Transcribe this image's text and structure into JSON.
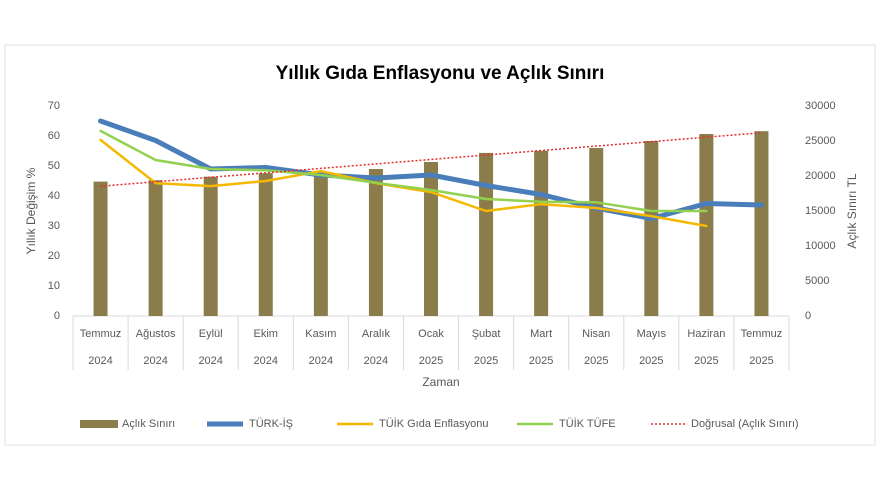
{
  "chart_data": {
    "type": "combo",
    "title": "Yıllık Gıda Enflasyonu ve Açlık Sınırı",
    "x_label": "Zaman",
    "y_label": "Yıllık Değişim %",
    "y2_label": "Açlık Sınırı TL",
    "categories": [
      [
        "Temmuz",
        "2024"
      ],
      [
        "Ağustos",
        "2024"
      ],
      [
        "Eylül",
        "2024"
      ],
      [
        "Ekim",
        "2024"
      ],
      [
        "Kasım",
        "2024"
      ],
      [
        "Aralık",
        "2024"
      ],
      [
        "Ocak",
        "2025"
      ],
      [
        "Şubat",
        "2025"
      ],
      [
        "Mart",
        "2025"
      ],
      [
        "Nisan",
        "2025"
      ],
      [
        "Mayıs",
        "2025"
      ],
      [
        "Haziran",
        "2025"
      ],
      [
        "Temmuz",
        "2025"
      ]
    ],
    "ylim": [
      0,
      70
    ],
    "yticks": [
      0,
      10,
      20,
      30,
      40,
      50,
      60,
      70
    ],
    "y2lim": [
      0,
      30000
    ],
    "y2ticks": [
      0,
      5000,
      10000,
      15000,
      20000,
      25000,
      30000
    ],
    "series": [
      {
        "name": "Açlık Sınırı",
        "type": "bar",
        "axis": "y2",
        "color": "#8b7d4b",
        "values": [
          19200,
          19400,
          19900,
          20400,
          20500,
          21000,
          22000,
          23300,
          23600,
          24000,
          25000,
          26000,
          26400
        ]
      },
      {
        "name": "TÜRK-İŞ",
        "type": "line",
        "color": "#4a7ebb",
        "values": [
          65,
          58.5,
          49,
          49.5,
          47,
          46,
          47,
          43.5,
          40.5,
          36,
          32.5,
          37.5,
          37
        ]
      },
      {
        "name": "TÜİK Gıda Enflasyonu",
        "type": "line",
        "color": "#f5b800",
        "values": [
          58.7,
          44.3,
          43.3,
          45,
          48.3,
          44.3,
          41.3,
          35,
          37.3,
          36,
          33.3,
          30,
          null
        ]
      },
      {
        "name": "TÜİK TÜFE",
        "type": "line",
        "color": "#92d050",
        "values": [
          61.7,
          52,
          49,
          48.6,
          47,
          44.4,
          42,
          39,
          38.1,
          37.9,
          35,
          35,
          null
        ]
      }
    ],
    "trendline": {
      "name": "Doğrusal (Açlık Sınırı)",
      "of": 0,
      "color": "#e03030"
    }
  }
}
